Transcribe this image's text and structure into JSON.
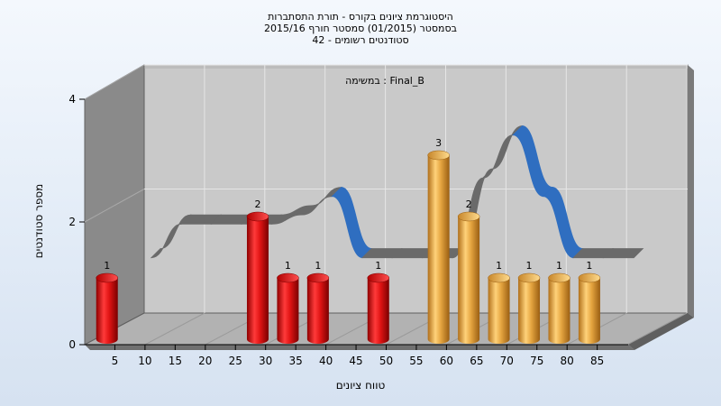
{
  "chart_data": {
    "type": "bar",
    "title_lines": [
      "היסטוגרמת ציונים בקורס - תורת התסתברות",
      "בסמסטר  (01/2015)  סמסטר חורף 2015/16",
      "סטודנטים רשומים - 42"
    ],
    "inner_caption": "במשימה : Final_B",
    "xlabel": "טווח ציונים",
    "ylabel": "מספר סטודנטים",
    "categories": [
      "5",
      "10",
      "15",
      "20",
      "25",
      "30",
      "35",
      "40",
      "45",
      "50",
      "55",
      "60",
      "65",
      "70",
      "75",
      "80",
      "85"
    ],
    "values": [
      1,
      0,
      0,
      0,
      0,
      2,
      1,
      1,
      0,
      1,
      0,
      3,
      2,
      1,
      1,
      1,
      1
    ],
    "bar_colors": [
      "red",
      "red",
      "red",
      "red",
      "red",
      "red",
      "red",
      "red",
      "red",
      "red",
      "red",
      "orange",
      "orange",
      "orange",
      "orange",
      "orange",
      "orange"
    ],
    "smooth_line_values": [
      1.3,
      1.85,
      1.85,
      1.85,
      1.85,
      2.0,
      2.3,
      1.3,
      1.3,
      1.3,
      1.3,
      2.6,
      3.3,
      2.3,
      1.3,
      1.3,
      1.3
    ],
    "ylim": [
      0,
      4
    ],
    "yticks": [
      "0",
      "2",
      "4"
    ],
    "colors": {
      "red_bar": "#e01414",
      "orange_bar": "#e5a540",
      "ribbon_front": "#2f6ec0",
      "ribbon_back": "#6a6a6a",
      "wall": "#c9c9c9",
      "side_wall": "#8a8a8a"
    },
    "grid": true
  }
}
